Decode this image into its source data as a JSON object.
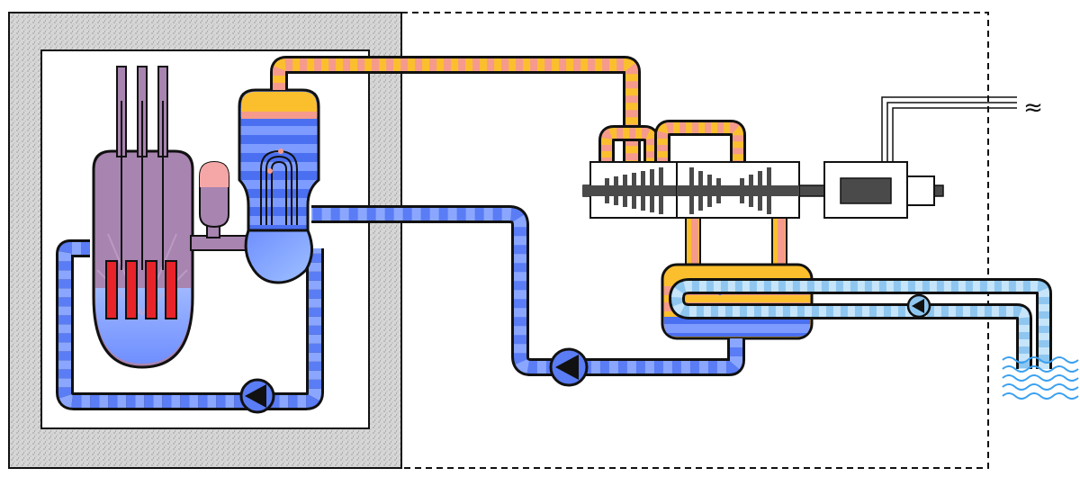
{
  "diagram": {
    "components": [
      {
        "id": "containment",
        "icon": "concrete-containment"
      },
      {
        "id": "reactor-vessel",
        "icon": "reactor-vessel"
      },
      {
        "id": "control-rods",
        "icon": "control-rods",
        "count": 3
      },
      {
        "id": "fuel-rods",
        "icon": "fuel-rods",
        "count": 4
      },
      {
        "id": "pressurizer",
        "icon": "pressurizer"
      },
      {
        "id": "steam-generator",
        "icon": "steam-generator"
      },
      {
        "id": "primary-pump",
        "icon": "pump"
      },
      {
        "id": "feedwater-pump",
        "icon": "pump"
      },
      {
        "id": "cooling-water-pump",
        "icon": "pump"
      },
      {
        "id": "hp-turbine",
        "icon": "turbine"
      },
      {
        "id": "lp-turbine",
        "icon": "turbine"
      },
      {
        "id": "generator",
        "icon": "generator"
      },
      {
        "id": "condenser",
        "icon": "condenser"
      },
      {
        "id": "cooling-water-source",
        "icon": "water-waves"
      },
      {
        "id": "power-lines",
        "icon": "ac-output"
      }
    ],
    "power_symbol": "≈",
    "colors": {
      "concrete": "#d9d9d9",
      "reactor": "#a884b0",
      "fuel": "#e8232a",
      "cold_water": "#4a6ff0",
      "cold_water_light": "#7e9cff",
      "steam_yellow": "#fbbf2e",
      "steam_pink": "#f59a8c",
      "cooling_water": "#8ec6f0",
      "cooling_water_light": "#c6e4fa",
      "pressurizer_top": "#f5a7a7",
      "turbine_shaft": "#4a4a4a",
      "outline": "#111111"
    }
  }
}
